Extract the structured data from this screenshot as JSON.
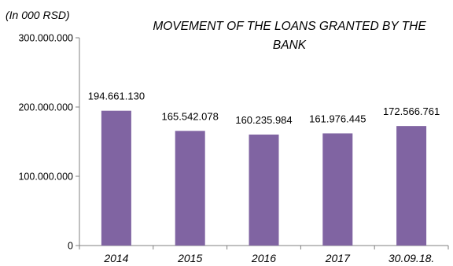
{
  "chart_data": {
    "type": "bar",
    "title": "MOVEMENT OF THE LOANS GRANTED BY THE BANK",
    "title_lines": [
      "MOVEMENT OF THE LOANS GRANTED BY THE",
      "BANK"
    ],
    "unit_label": "(In 000 RSD)",
    "categories": [
      "2014",
      "2015",
      "2016",
      "2017",
      "30.09.18."
    ],
    "values": [
      194661130,
      165542078,
      160235984,
      161976445,
      172566761
    ],
    "value_labels": [
      "194.661.130",
      "165.542.078",
      "160.235.984",
      "161.976.445",
      "172.566.761"
    ],
    "ylim": [
      0,
      300000000
    ],
    "yticks": [
      0,
      100000000,
      200000000,
      300000000
    ],
    "ytick_labels": [
      "0",
      "100.000.000",
      "200.000.000",
      "300.000.000"
    ],
    "grid": false,
    "legend": "none",
    "bar_color": "#8064A2"
  }
}
